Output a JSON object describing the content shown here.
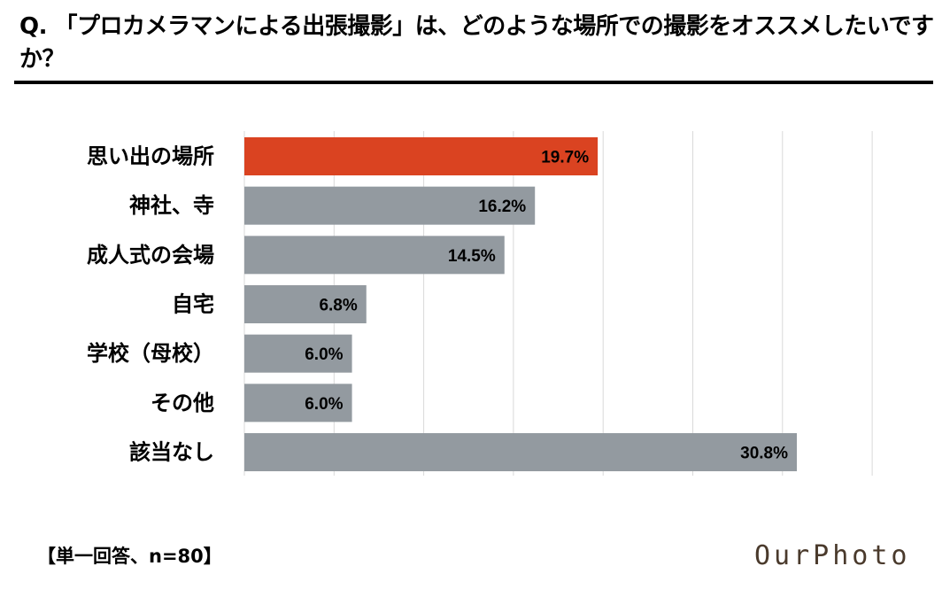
{
  "question": "Q. 「プロカメラマンによる出張撮影」は、どのような場所での撮影をオススメしたいですか？",
  "footnote": "【単一回答、n=80】",
  "logo_text": "OurPhoto",
  "colors": {
    "highlight": "#da4321",
    "bar": "#939aa0",
    "grid": "#d9d9d9"
  },
  "chart_data": {
    "type": "bar",
    "orientation": "horizontal",
    "categories": [
      "思い出の場所",
      "神社、寺",
      "成人式の会場",
      "自宅",
      "学校（母校）",
      "その他",
      "該当なし"
    ],
    "values": [
      19.7,
      16.2,
      14.5,
      6.8,
      6.0,
      6.0,
      30.8
    ],
    "value_labels": [
      "19.7%",
      "16.2%",
      "14.5%",
      "6.8%",
      "6.0%",
      "6.0%",
      "30.8%"
    ],
    "highlight_index": 0,
    "xlim": [
      0,
      35
    ],
    "grid": true,
    "legend": "none"
  }
}
